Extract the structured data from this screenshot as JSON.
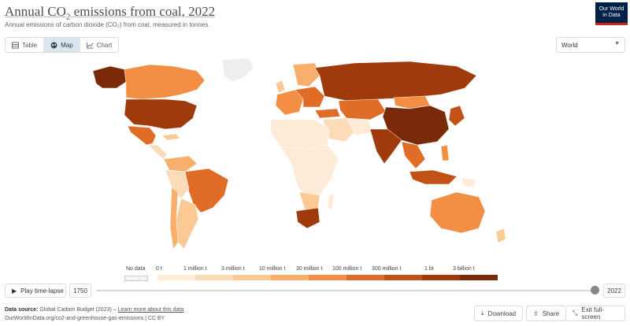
{
  "header": {
    "title_main": "Annual CO",
    "title_sub": "2",
    "title_rest": " emissions from coal, 2022",
    "subtitle": "Annual emissions of carbon dioxide (CO₂) from coal, measured in tonnes.",
    "logo_line1": "Our World",
    "logo_line2": "in Data"
  },
  "tabs": [
    {
      "label": "Table",
      "icon": "table-icon",
      "active": false
    },
    {
      "label": "Map",
      "icon": "globe-icon",
      "active": true
    },
    {
      "label": "Chart",
      "icon": "line-chart-icon",
      "active": false
    }
  ],
  "region_select": {
    "value": "World"
  },
  "legend": {
    "no_data_label": "No data",
    "bins": [
      {
        "label": "0 t",
        "color": "#fdebd8"
      },
      {
        "label": "1 million t",
        "color": "#fcdcb8"
      },
      {
        "label": "3 million t",
        "color": "#fbc994"
      },
      {
        "label": "10 million t",
        "color": "#f9af6c"
      },
      {
        "label": "30 million t",
        "color": "#f28f45"
      },
      {
        "label": "100 million t",
        "color": "#e06d27"
      },
      {
        "label": "300 million t",
        "color": "#c25117"
      },
      {
        "label": "1 bt",
        "color": "#9e3a0c"
      },
      {
        "label": "3 billion t",
        "color": "#7a2a08"
      }
    ]
  },
  "timeline": {
    "play_label": "Play time-lapse",
    "start_year": "1750",
    "end_year": "2022"
  },
  "footer": {
    "source_label": "Data source:",
    "source_text": "Global Carbon Budget (2023) –",
    "learn_more": "Learn more about this data",
    "url_text": "OurWorldInData.org/co2-and-greenhouse-gas-emissions | CC BY",
    "download_label": "Download",
    "share_label": "Share",
    "fullscreen_label": "Exit full-screen"
  },
  "colors": {
    "accent": "#ce261e",
    "brand": "#002147",
    "no_data": "#eeeeee"
  }
}
